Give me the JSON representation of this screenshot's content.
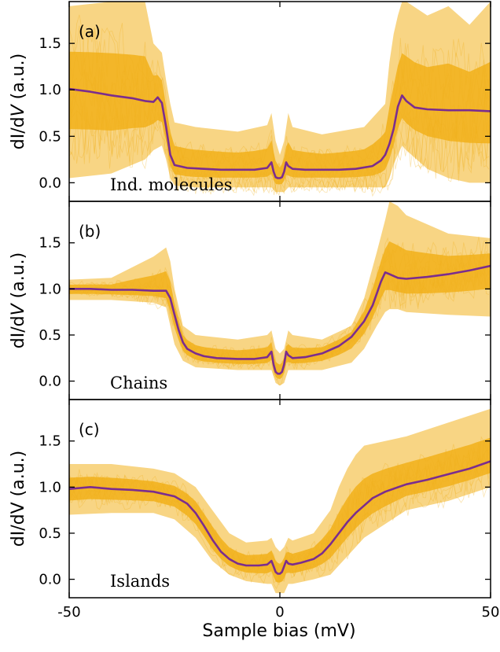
{
  "figure": {
    "xlabel": "Sample bias (mV)",
    "x_ticks": [
      "-50",
      "0",
      "50"
    ]
  },
  "colors": {
    "traces": "#f2b31f",
    "average": "#7b2d8e",
    "axes": "#000000"
  },
  "chart_data": [
    {
      "type": "line",
      "panel": "(a)",
      "annotation": "Ind. molecules",
      "ylabel_prefix": "dI/d",
      "ylabel_italic": "V",
      "ylabel_suffix": " (a.u.)",
      "xlim": [
        -50,
        50
      ],
      "ylim": [
        -0.2,
        1.95
      ],
      "y_ticks": [
        "0.0",
        "0.5",
        "1.0",
        "1.5"
      ],
      "grid": false,
      "series": [
        {
          "role": "average",
          "x": [
            -50,
            -45,
            -40,
            -35,
            -32,
            -30,
            -29,
            -28,
            -27,
            -26,
            -25,
            -22,
            -18,
            -14,
            -10,
            -6,
            -3,
            -2,
            -1.5,
            -1,
            -0.5,
            0,
            0.5,
            1,
            1.5,
            2,
            3,
            6,
            10,
            14,
            18,
            22,
            24,
            25,
            26,
            27,
            28,
            29,
            30,
            32,
            35,
            40,
            45,
            50
          ],
          "y": [
            1.01,
            0.98,
            0.94,
            0.91,
            0.88,
            0.87,
            0.92,
            0.86,
            0.6,
            0.3,
            0.19,
            0.16,
            0.15,
            0.14,
            0.14,
            0.14,
            0.16,
            0.22,
            0.12,
            0.06,
            0.05,
            0.05,
            0.06,
            0.12,
            0.22,
            0.18,
            0.15,
            0.14,
            0.14,
            0.14,
            0.15,
            0.18,
            0.24,
            0.3,
            0.42,
            0.58,
            0.82,
            0.94,
            0.88,
            0.81,
            0.79,
            0.78,
            0.78,
            0.77
          ]
        },
        {
          "role": "traces-upper-envelope",
          "x": [
            -50,
            -40,
            -32,
            -30,
            -28,
            -27,
            -26,
            -25,
            -20,
            -10,
            -3,
            -2,
            -1,
            0,
            1,
            2,
            3,
            10,
            20,
            25,
            26,
            27,
            28,
            29,
            30,
            35,
            40,
            45,
            50
          ],
          "y": [
            1.9,
            1.95,
            1.95,
            1.5,
            1.4,
            1.1,
            0.85,
            0.65,
            0.6,
            0.55,
            0.62,
            0.75,
            0.45,
            0.3,
            0.45,
            0.75,
            0.6,
            0.52,
            0.6,
            0.85,
            1.3,
            1.6,
            1.8,
            1.95,
            1.95,
            1.8,
            1.9,
            1.7,
            1.95
          ]
        },
        {
          "role": "traces-lower-envelope",
          "x": [
            -50,
            -40,
            -32,
            -30,
            -28,
            -27,
            -26,
            -25,
            -20,
            -10,
            -3,
            -2,
            -1,
            0,
            1,
            2,
            3,
            10,
            20,
            25,
            26,
            27,
            28,
            29,
            30,
            35,
            40,
            45,
            50
          ],
          "y": [
            0.05,
            0.1,
            0.25,
            0.35,
            0.4,
            0.25,
            0.05,
            -0.03,
            -0.05,
            -0.05,
            -0.05,
            -0.05,
            -0.1,
            -0.1,
            -0.1,
            -0.05,
            -0.05,
            -0.05,
            -0.05,
            -0.05,
            0.05,
            0.2,
            0.3,
            0.4,
            0.35,
            0.15,
            0.05,
            0.0,
            0.0
          ]
        }
      ]
    },
    {
      "type": "line",
      "panel": "(b)",
      "annotation": "Chains",
      "ylabel_prefix": "dI/d",
      "ylabel_italic": "V",
      "ylabel_suffix": " (a.u.)",
      "xlim": [
        -50,
        50
      ],
      "ylim": [
        -0.2,
        1.95
      ],
      "y_ticks": [
        "0.0",
        "0.5",
        "1.0",
        "1.5"
      ],
      "grid": false,
      "series": [
        {
          "role": "average",
          "x": [
            -50,
            -45,
            -40,
            -35,
            -30,
            -27,
            -26,
            -25,
            -24,
            -23,
            -22,
            -20,
            -18,
            -15,
            -10,
            -6,
            -3,
            -2,
            -1.5,
            -1,
            -0.5,
            0,
            0.5,
            1,
            1.5,
            2,
            3,
            6,
            10,
            14,
            17,
            20,
            22,
            23,
            24,
            25,
            26,
            28,
            30,
            35,
            40,
            45,
            50
          ],
          "y": [
            1.0,
            1.0,
            0.99,
            0.99,
            0.98,
            0.98,
            0.9,
            0.72,
            0.55,
            0.42,
            0.35,
            0.3,
            0.27,
            0.25,
            0.24,
            0.24,
            0.26,
            0.32,
            0.18,
            0.1,
            0.08,
            0.08,
            0.1,
            0.18,
            0.32,
            0.28,
            0.25,
            0.26,
            0.3,
            0.38,
            0.48,
            0.65,
            0.82,
            0.95,
            1.08,
            1.18,
            1.16,
            1.12,
            1.11,
            1.13,
            1.16,
            1.2,
            1.25
          ]
        },
        {
          "role": "traces-upper-envelope",
          "x": [
            -50,
            -40,
            -30,
            -27,
            -26,
            -25,
            -23,
            -20,
            -10,
            -3,
            -2,
            -1,
            0,
            1,
            2,
            3,
            10,
            17,
            20,
            23,
            25,
            26,
            28,
            30,
            40,
            50
          ],
          "y": [
            1.1,
            1.12,
            1.35,
            1.45,
            1.3,
            1.0,
            0.6,
            0.5,
            0.45,
            0.5,
            0.55,
            0.35,
            0.3,
            0.35,
            0.55,
            0.5,
            0.45,
            0.6,
            0.9,
            1.4,
            1.75,
            1.95,
            1.9,
            1.8,
            1.6,
            1.55
          ]
        },
        {
          "role": "traces-lower-envelope",
          "x": [
            -50,
            -40,
            -30,
            -27,
            -26,
            -25,
            -23,
            -20,
            -10,
            -3,
            -2,
            -1,
            0,
            1,
            2,
            3,
            10,
            17,
            20,
            23,
            25,
            26,
            28,
            30,
            40,
            50
          ],
          "y": [
            0.88,
            0.88,
            0.85,
            0.8,
            0.6,
            0.4,
            0.22,
            0.15,
            0.12,
            0.12,
            0.12,
            -0.02,
            -0.05,
            -0.02,
            0.12,
            0.12,
            0.12,
            0.2,
            0.35,
            0.6,
            0.75,
            0.78,
            0.78,
            0.75,
            0.72,
            0.7
          ]
        }
      ]
    },
    {
      "type": "line",
      "panel": "(c)",
      "annotation": "Islands",
      "ylabel_prefix": "dI/dV",
      "ylabel_italic": "",
      "ylabel_suffix": " (a.u.)",
      "xlim": [
        -50,
        50
      ],
      "ylim": [
        -0.2,
        1.95
      ],
      "y_ticks": [
        "0.0",
        "0.5",
        "1.0",
        "1.5"
      ],
      "grid": false,
      "series": [
        {
          "role": "average",
          "x": [
            -50,
            -45,
            -40,
            -35,
            -30,
            -25,
            -22,
            -20,
            -18,
            -16,
            -14,
            -12,
            -10,
            -8,
            -5,
            -3,
            -2,
            -1.5,
            -1,
            -0.5,
            0,
            0.5,
            1,
            1.5,
            2,
            3,
            5,
            8,
            10,
            12,
            14,
            16,
            18,
            20,
            22,
            25,
            30,
            35,
            40,
            45,
            50
          ],
          "y": [
            0.98,
            1.0,
            0.98,
            0.97,
            0.95,
            0.9,
            0.82,
            0.72,
            0.58,
            0.43,
            0.3,
            0.22,
            0.17,
            0.15,
            0.15,
            0.16,
            0.2,
            0.14,
            0.08,
            0.06,
            0.06,
            0.08,
            0.14,
            0.2,
            0.17,
            0.16,
            0.18,
            0.22,
            0.28,
            0.38,
            0.5,
            0.62,
            0.72,
            0.8,
            0.88,
            0.95,
            1.03,
            1.08,
            1.14,
            1.2,
            1.28
          ]
        },
        {
          "role": "traces-upper-envelope",
          "x": [
            -50,
            -40,
            -30,
            -25,
            -20,
            -16,
            -12,
            -8,
            -3,
            -2,
            -1,
            0,
            1,
            2,
            3,
            8,
            12,
            14,
            16,
            18,
            20,
            25,
            30,
            40,
            50
          ],
          "y": [
            1.25,
            1.25,
            1.2,
            1.15,
            1.0,
            0.75,
            0.5,
            0.4,
            0.42,
            0.45,
            0.35,
            0.3,
            0.35,
            0.45,
            0.42,
            0.5,
            0.75,
            1.0,
            1.2,
            1.35,
            1.45,
            1.5,
            1.55,
            1.7,
            1.85
          ]
        },
        {
          "role": "traces-lower-envelope",
          "x": [
            -50,
            -40,
            -30,
            -25,
            -20,
            -16,
            -12,
            -8,
            -3,
            -2,
            -1,
            0,
            1,
            2,
            3,
            8,
            12,
            14,
            16,
            18,
            20,
            25,
            30,
            40,
            50
          ],
          "y": [
            0.7,
            0.72,
            0.72,
            0.65,
            0.45,
            0.2,
            0.05,
            -0.02,
            -0.05,
            -0.05,
            -0.15,
            -0.15,
            -0.15,
            -0.05,
            -0.05,
            0.0,
            0.05,
            0.15,
            0.25,
            0.35,
            0.45,
            0.6,
            0.75,
            0.85,
            1.0
          ]
        }
      ]
    }
  ]
}
